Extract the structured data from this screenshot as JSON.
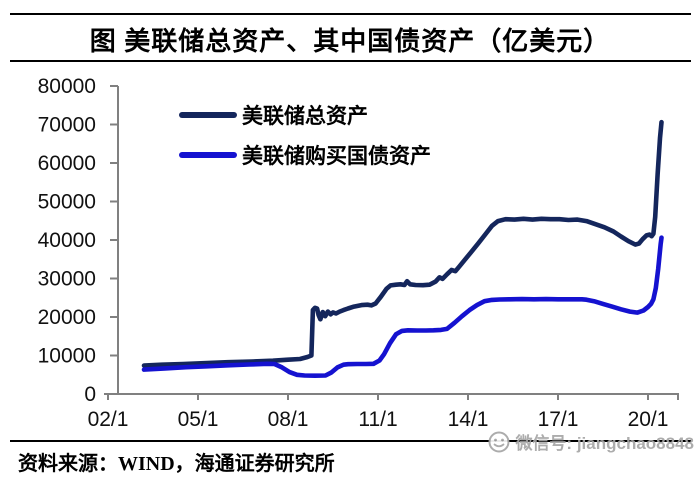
{
  "header": {
    "title": "图  美联储总资产、其中国债资产（亿美元）"
  },
  "footer": {
    "source": "资料来源：WIND，海通证券研究所"
  },
  "watermark": {
    "icon": "wechat-icon",
    "text": "微信号: jiangchao8848"
  },
  "colors": {
    "total_series": "#14265c",
    "treasury_series": "#1512d0",
    "axis": "#808080",
    "text": "#000000",
    "watermark": "#a6a6a6"
  },
  "chart_data": {
    "type": "line",
    "title": "美联储总资产、其中国债资产（亿美元）",
    "unit": "亿美元",
    "grid": false,
    "legend_position": "inside-top-left",
    "x_axis": {
      "range_years": [
        2001.8,
        2021.0
      ],
      "ticks": [
        {
          "year": 2002,
          "label": "02/1"
        },
        {
          "year": 2005,
          "label": "05/1"
        },
        {
          "year": 2008,
          "label": "08/1"
        },
        {
          "year": 2011,
          "label": "11/1"
        },
        {
          "year": 2014,
          "label": "14/1"
        },
        {
          "year": 2017,
          "label": "17/1"
        },
        {
          "year": 2020,
          "label": "20/1"
        }
      ]
    },
    "y_axis": {
      "range": [
        0,
        80000
      ],
      "ticks": [
        0,
        10000,
        20000,
        30000,
        40000,
        50000,
        60000,
        70000,
        80000
      ]
    },
    "series": [
      {
        "name": "美联储总资产",
        "color": "#14265c",
        "points": [
          [
            2003.2,
            7400
          ],
          [
            2003.8,
            7600
          ],
          [
            2004.5,
            7800
          ],
          [
            2005.2,
            8000
          ],
          [
            2006.0,
            8250
          ],
          [
            2006.8,
            8450
          ],
          [
            2007.5,
            8650
          ],
          [
            2008.0,
            8900
          ],
          [
            2008.4,
            9100
          ],
          [
            2008.65,
            9600
          ],
          [
            2008.78,
            10000
          ],
          [
            2008.83,
            21800
          ],
          [
            2008.9,
            22400
          ],
          [
            2008.97,
            22200
          ],
          [
            2009.02,
            20500
          ],
          [
            2009.08,
            19400
          ],
          [
            2009.16,
            21300
          ],
          [
            2009.24,
            20200
          ],
          [
            2009.33,
            21400
          ],
          [
            2009.42,
            20700
          ],
          [
            2009.5,
            21200
          ],
          [
            2009.6,
            20900
          ],
          [
            2009.72,
            21400
          ],
          [
            2009.85,
            21800
          ],
          [
            2010.0,
            22200
          ],
          [
            2010.2,
            22700
          ],
          [
            2010.45,
            23100
          ],
          [
            2010.65,
            23200
          ],
          [
            2010.78,
            23000
          ],
          [
            2010.92,
            23500
          ],
          [
            2011.1,
            25300
          ],
          [
            2011.28,
            27300
          ],
          [
            2011.42,
            28200
          ],
          [
            2011.6,
            28400
          ],
          [
            2011.75,
            28500
          ],
          [
            2011.88,
            28300
          ],
          [
            2011.97,
            29300
          ],
          [
            2012.07,
            28500
          ],
          [
            2012.25,
            28300
          ],
          [
            2012.5,
            28250
          ],
          [
            2012.72,
            28400
          ],
          [
            2012.92,
            29200
          ],
          [
            2013.05,
            30300
          ],
          [
            2013.15,
            29900
          ],
          [
            2013.3,
            31100
          ],
          [
            2013.45,
            32200
          ],
          [
            2013.58,
            31900
          ],
          [
            2013.72,
            33200
          ],
          [
            2013.9,
            34900
          ],
          [
            2014.1,
            36800
          ],
          [
            2014.35,
            39200
          ],
          [
            2014.6,
            41700
          ],
          [
            2014.8,
            43700
          ],
          [
            2015.0,
            44900
          ],
          [
            2015.25,
            45400
          ],
          [
            2015.55,
            45300
          ],
          [
            2015.85,
            45500
          ],
          [
            2016.15,
            45300
          ],
          [
            2016.45,
            45500
          ],
          [
            2016.75,
            45400
          ],
          [
            2017.05,
            45400
          ],
          [
            2017.35,
            45200
          ],
          [
            2017.65,
            45300
          ],
          [
            2017.95,
            44900
          ],
          [
            2018.25,
            44100
          ],
          [
            2018.55,
            43300
          ],
          [
            2018.85,
            42200
          ],
          [
            2019.1,
            40900
          ],
          [
            2019.35,
            39700
          ],
          [
            2019.58,
            38800
          ],
          [
            2019.7,
            39100
          ],
          [
            2019.82,
            40200
          ],
          [
            2019.95,
            41200
          ],
          [
            2020.05,
            41400
          ],
          [
            2020.12,
            41000
          ],
          [
            2020.18,
            41600
          ],
          [
            2020.24,
            46000
          ],
          [
            2020.32,
            57000
          ],
          [
            2020.4,
            66500
          ],
          [
            2020.45,
            70600
          ]
        ]
      },
      {
        "name": "美联储购买国债资产",
        "color": "#1512d0",
        "points": [
          [
            2003.2,
            6350
          ],
          [
            2003.9,
            6650
          ],
          [
            2004.6,
            6950
          ],
          [
            2005.3,
            7200
          ],
          [
            2006.0,
            7450
          ],
          [
            2006.7,
            7650
          ],
          [
            2007.3,
            7850
          ],
          [
            2007.55,
            7800
          ],
          [
            2007.8,
            6900
          ],
          [
            2008.05,
            5700
          ],
          [
            2008.3,
            5000
          ],
          [
            2008.55,
            4800
          ],
          [
            2008.9,
            4750
          ],
          [
            2009.25,
            4800
          ],
          [
            2009.45,
            5600
          ],
          [
            2009.65,
            6900
          ],
          [
            2009.85,
            7600
          ],
          [
            2010.0,
            7750
          ],
          [
            2010.3,
            7780
          ],
          [
            2010.6,
            7800
          ],
          [
            2010.85,
            7850
          ],
          [
            2011.05,
            8700
          ],
          [
            2011.2,
            10300
          ],
          [
            2011.4,
            13200
          ],
          [
            2011.6,
            15500
          ],
          [
            2011.8,
            16400
          ],
          [
            2012.0,
            16550
          ],
          [
            2012.3,
            16500
          ],
          [
            2012.6,
            16500
          ],
          [
            2012.85,
            16550
          ],
          [
            2013.1,
            16650
          ],
          [
            2013.3,
            16900
          ],
          [
            2013.55,
            18500
          ],
          [
            2013.8,
            20200
          ],
          [
            2014.05,
            21800
          ],
          [
            2014.3,
            23100
          ],
          [
            2014.55,
            24100
          ],
          [
            2014.8,
            24450
          ],
          [
            2015.05,
            24550
          ],
          [
            2015.4,
            24600
          ],
          [
            2015.8,
            24650
          ],
          [
            2016.2,
            24600
          ],
          [
            2016.6,
            24650
          ],
          [
            2017.0,
            24600
          ],
          [
            2017.4,
            24600
          ],
          [
            2017.8,
            24600
          ],
          [
            2017.95,
            24500
          ],
          [
            2018.2,
            24100
          ],
          [
            2018.5,
            23400
          ],
          [
            2018.8,
            22700
          ],
          [
            2019.1,
            22000
          ],
          [
            2019.4,
            21400
          ],
          [
            2019.65,
            21150
          ],
          [
            2019.85,
            21700
          ],
          [
            2020.0,
            22600
          ],
          [
            2020.1,
            23400
          ],
          [
            2020.18,
            24600
          ],
          [
            2020.26,
            27500
          ],
          [
            2020.34,
            32500
          ],
          [
            2020.42,
            38800
          ],
          [
            2020.45,
            40600
          ]
        ]
      }
    ]
  }
}
